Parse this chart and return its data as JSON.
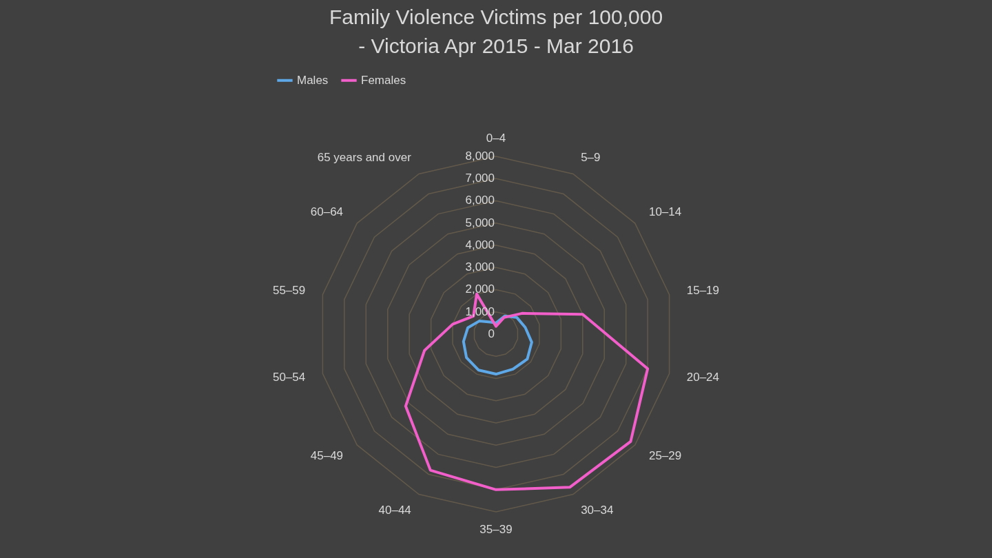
{
  "chart_data": {
    "type": "radar",
    "title": "Family Violence Victims per 100,000 - Victoria Apr 2015 - Mar 2016",
    "categories": [
      "0–4",
      "5–9",
      "10–14",
      "15–19",
      "20–24",
      "25–29",
      "30–34",
      "35–39",
      "40–44",
      "45–49",
      "50–54",
      "55–59",
      "60–64",
      "65 years and over"
    ],
    "series": [
      {
        "name": "Males",
        "color": "#5fa8e8",
        "values": [
          500,
          900,
          1200,
          1350,
          1650,
          1800,
          1750,
          1800,
          1800,
          1700,
          1500,
          1300,
          950,
          600
        ]
      },
      {
        "name": "Females",
        "color": "#f25fcb",
        "values": [
          350,
          830,
          1500,
          4000,
          7000,
          7750,
          7650,
          7000,
          6800,
          5200,
          3300,
          2000,
          1300,
          2000
        ]
      }
    ],
    "ylim": [
      0,
      8000
    ],
    "yticks": [
      {
        "value": 0,
        "label": "0"
      },
      {
        "value": 1000,
        "label": "1,000"
      },
      {
        "value": 2000,
        "label": "2,000"
      },
      {
        "value": 3000,
        "label": "3,000"
      },
      {
        "value": 4000,
        "label": "4,000"
      },
      {
        "value": 5000,
        "label": "5,000"
      },
      {
        "value": 6000,
        "label": "6,000"
      },
      {
        "value": 7000,
        "label": "7,000"
      },
      {
        "value": 8000,
        "label": "8,000"
      }
    ],
    "grid": true,
    "legend": "top",
    "marker": "none",
    "line_style": "solid"
  }
}
